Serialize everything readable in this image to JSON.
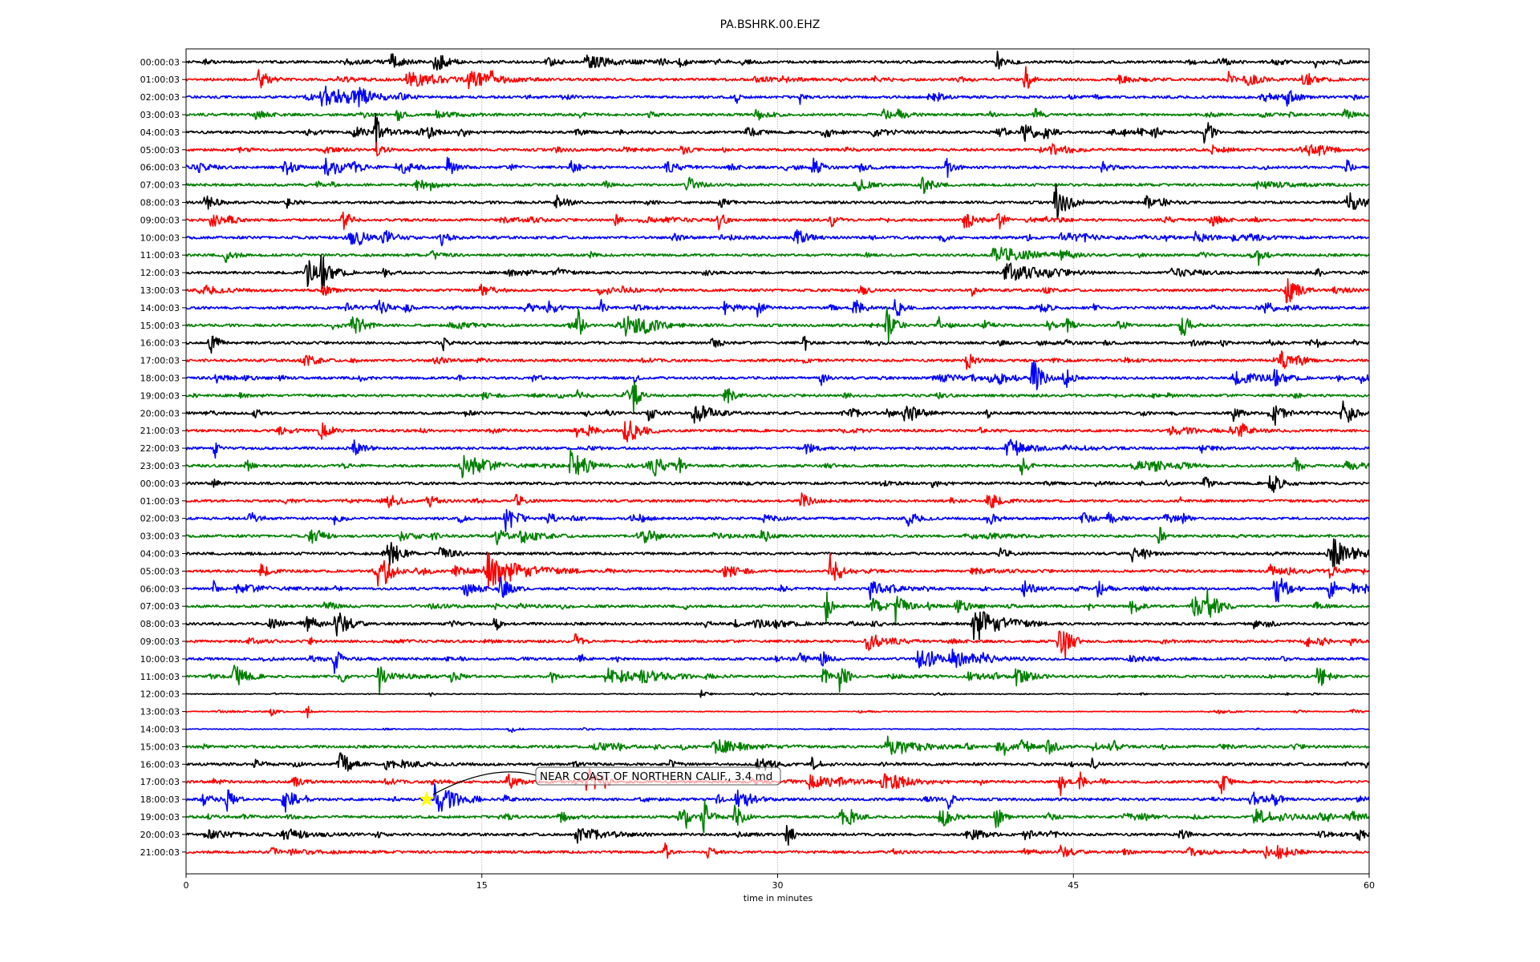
{
  "chart_data": {
    "type": "line",
    "title": "PA.BSHRK.00.EHZ",
    "xlabel": "time in minutes",
    "ylabel": "",
    "xlim": [
      0,
      60
    ],
    "xticks": [
      "0",
      "15",
      "30",
      "45",
      "60"
    ],
    "xtick_values": [
      0,
      15,
      30,
      45,
      60
    ],
    "grid": "vertical dotted at 15, 30, 45",
    "trace_colors": [
      "#000000",
      "#ff0000",
      "#0000ff",
      "#008000"
    ],
    "row_labels": [
      "00:00:03",
      "01:00:03",
      "02:00:03",
      "03:00:03",
      "04:00:03",
      "05:00:03",
      "06:00:03",
      "07:00:03",
      "08:00:03",
      "09:00:03",
      "10:00:03",
      "11:00:03",
      "12:00:03",
      "13:00:03",
      "14:00:03",
      "15:00:03",
      "16:00:03",
      "17:00:03",
      "18:00:03",
      "19:00:03",
      "20:00:03",
      "21:00:03",
      "22:00:03",
      "23:00:03",
      "00:00:03",
      "01:00:03",
      "02:00:03",
      "03:00:03",
      "04:00:03",
      "05:00:03",
      "06:00:03",
      "07:00:03",
      "08:00:03",
      "09:00:03",
      "10:00:03",
      "11:00:03",
      "12:00:03",
      "13:00:03",
      "14:00:03",
      "15:00:03",
      "16:00:03",
      "17:00:03",
      "18:00:03",
      "19:00:03",
      "20:00:03",
      "21:00:03"
    ],
    "annotation": {
      "text": "NEAR COAST OF NORTHERN CALIF., 3.4 md",
      "row": 42,
      "minute": 12.2,
      "marker": "star",
      "marker_color": "#ffff00"
    }
  }
}
